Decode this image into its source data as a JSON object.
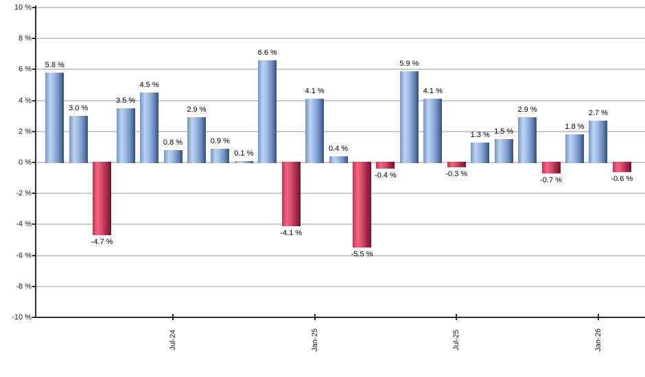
{
  "chart_data": {
    "type": "bar",
    "title": "",
    "xlabel": "",
    "ylabel": "",
    "ylim": [
      -10,
      10
    ],
    "grid": true,
    "legend": false,
    "y_ticks": [
      {
        "value": 10,
        "label": "10 %"
      },
      {
        "value": 8,
        "label": "8 %"
      },
      {
        "value": 6,
        "label": "6 %"
      },
      {
        "value": 4,
        "label": "4 %"
      },
      {
        "value": 2,
        "label": "2 %"
      },
      {
        "value": 0,
        "label": "0 %"
      },
      {
        "value": -2,
        "label": "-2 %"
      },
      {
        "value": -4,
        "label": "-4 %"
      },
      {
        "value": -6,
        "label": "-6 %"
      },
      {
        "value": -8,
        "label": "-8 %"
      },
      {
        "value": -10,
        "label": "-10 %"
      }
    ],
    "x_ticks": [
      {
        "label": "Jul-24",
        "bar_index": 5
      },
      {
        "label": "Jan-25",
        "bar_index": 11
      },
      {
        "label": "Jul-25",
        "bar_index": 17
      },
      {
        "label": "Jan-26",
        "bar_index": 23
      }
    ],
    "bars": [
      {
        "value": 5.8,
        "label": "5.8 %"
      },
      {
        "value": 3.0,
        "label": "3.0 %"
      },
      {
        "value": -4.7,
        "label": "-4.7 %"
      },
      {
        "value": 3.5,
        "label": "3.5 %"
      },
      {
        "value": 4.5,
        "label": "4.5 %"
      },
      {
        "value": 0.8,
        "label": "0.8 %"
      },
      {
        "value": 2.9,
        "label": "2.9 %"
      },
      {
        "value": 0.9,
        "label": "0.9 %"
      },
      {
        "value": 0.1,
        "label": "0.1 %"
      },
      {
        "value": 6.6,
        "label": "6.6 %"
      },
      {
        "value": -4.1,
        "label": "-4.1 %"
      },
      {
        "value": 4.1,
        "label": "4.1 %"
      },
      {
        "value": 0.4,
        "label": "0.4 %"
      },
      {
        "value": -5.5,
        "label": "-5.5 %"
      },
      {
        "value": -0.4,
        "label": "-0.4 %"
      },
      {
        "value": 5.9,
        "label": "5.9 %"
      },
      {
        "value": 4.1,
        "label": "4.1 %"
      },
      {
        "value": -0.3,
        "label": "-0.3 %"
      },
      {
        "value": 1.3,
        "label": "1.3 %"
      },
      {
        "value": 1.5,
        "label": "1.5 %"
      },
      {
        "value": 2.9,
        "label": "2.9 %"
      },
      {
        "value": -0.7,
        "label": "-0.7 %"
      },
      {
        "value": 1.8,
        "label": "1.8 %"
      },
      {
        "value": 2.7,
        "label": "2.7 %"
      },
      {
        "value": -0.6,
        "label": "-0.6 %"
      }
    ],
    "colors": {
      "background": "#ffffff",
      "grid": "#cbcbcb",
      "axis": "#2b2b2b",
      "positive_edge": "#7593c4",
      "positive_light": "#bdd4f2",
      "positive_dark": "#324f7c",
      "negative_edge": "#c23456",
      "negative_light": "#f26683",
      "negative_dark": "#77102e"
    }
  }
}
